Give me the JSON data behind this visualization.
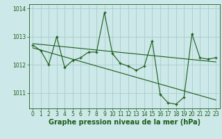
{
  "title": "Graphe pression niveau de la mer (hPa)",
  "background_color": "#cce8e8",
  "grid_color": "#aacccc",
  "line_color": "#1a5c1a",
  "marker_color": "#1a5c1a",
  "xlim": [
    -0.5,
    23.5
  ],
  "ylim": [
    1010.45,
    1014.15
  ],
  "yticks": [
    1011,
    1012,
    1013,
    1014
  ],
  "xticks": [
    0,
    1,
    2,
    3,
    4,
    5,
    6,
    7,
    8,
    9,
    10,
    11,
    12,
    13,
    14,
    15,
    16,
    17,
    18,
    19,
    20,
    21,
    22,
    23
  ],
  "series1_x": [
    0,
    1,
    2,
    3,
    4,
    5,
    6,
    7,
    8,
    9,
    10,
    11,
    12,
    13,
    14,
    15,
    16,
    17,
    18,
    19,
    20,
    21,
    22,
    23
  ],
  "series1_y": [
    1012.7,
    1012.5,
    1012.0,
    1013.0,
    1011.9,
    1012.15,
    1012.25,
    1012.45,
    1012.45,
    1013.85,
    1012.4,
    1012.05,
    1011.95,
    1011.8,
    1011.95,
    1012.85,
    1010.95,
    1010.65,
    1010.6,
    1010.85,
    1013.1,
    1012.25,
    1012.2,
    1012.25
  ],
  "series2_x": [
    0,
    23
  ],
  "series2_y": [
    1012.75,
    1012.1
  ],
  "series3_x": [
    0,
    23
  ],
  "series3_y": [
    1012.6,
    1010.75
  ],
  "tick_fontsize": 5.5,
  "label_fontsize": 7.0
}
